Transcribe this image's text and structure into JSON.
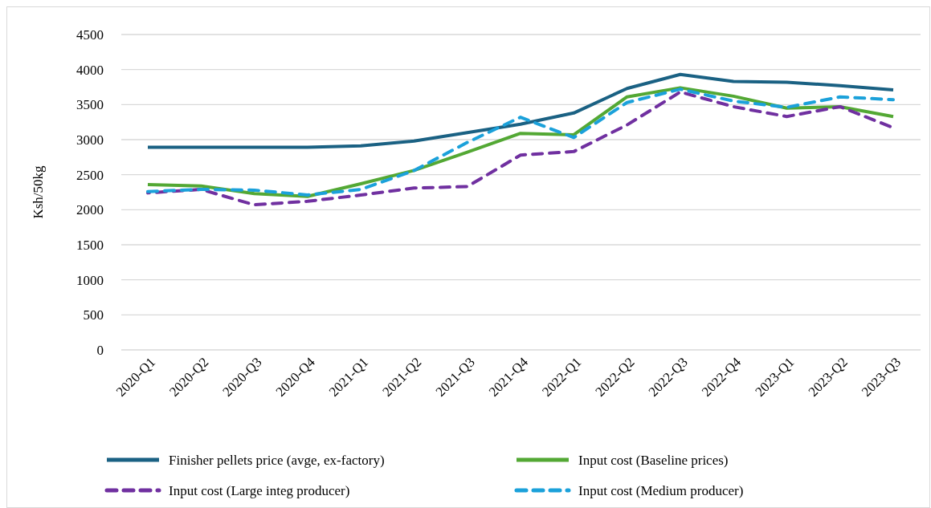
{
  "chart_data": {
    "type": "line",
    "ylabel": "Ksh/50kg",
    "categories": [
      "2020-Q1",
      "2020-Q2",
      "2020-Q3",
      "2020-Q4",
      "2021-Q1",
      "2021-Q2",
      "2021-Q3",
      "2021-Q4",
      "2022-Q1",
      "2022-Q2",
      "2022-Q3",
      "2022-Q4",
      "2023-Q1",
      "2023-Q2",
      "2023-Q3"
    ],
    "ylim": [
      0,
      4500
    ],
    "yticks": [
      0,
      500,
      1000,
      1500,
      2000,
      2500,
      3000,
      3500,
      4000,
      4500
    ],
    "grid": "y",
    "legend": "bottom",
    "marker": "none",
    "series": [
      {
        "name": "Finisher pellets price (avge, ex-factory)",
        "color": "#1a6183",
        "line_style": "solid",
        "values": [
          2890,
          2890,
          2890,
          2890,
          2910,
          2980,
          3100,
          3220,
          3380,
          3730,
          3930,
          3830,
          3820,
          3770,
          3710
        ]
      },
      {
        "name": "Input cost (Baseline prices)",
        "color": "#53a834",
        "line_style": "solid",
        "values": [
          2360,
          2340,
          2230,
          2190,
          2370,
          2560,
          2820,
          3090,
          3070,
          3610,
          3740,
          3620,
          3450,
          3470,
          3330
        ]
      },
      {
        "name": "Input cost (Large integ producer)",
        "color": "#7030a0",
        "line_style": "dashed",
        "values": [
          2240,
          2290,
          2070,
          2120,
          2210,
          2310,
          2330,
          2780,
          2830,
          3210,
          3680,
          3470,
          3330,
          3470,
          3170
        ]
      },
      {
        "name": "Input cost (Medium producer)",
        "color": "#1ba1da",
        "line_style": "dashed",
        "values": [
          2260,
          2290,
          2280,
          2210,
          2290,
          2560,
          2960,
          3320,
          3030,
          3530,
          3720,
          3550,
          3460,
          3610,
          3570
        ]
      }
    ]
  }
}
